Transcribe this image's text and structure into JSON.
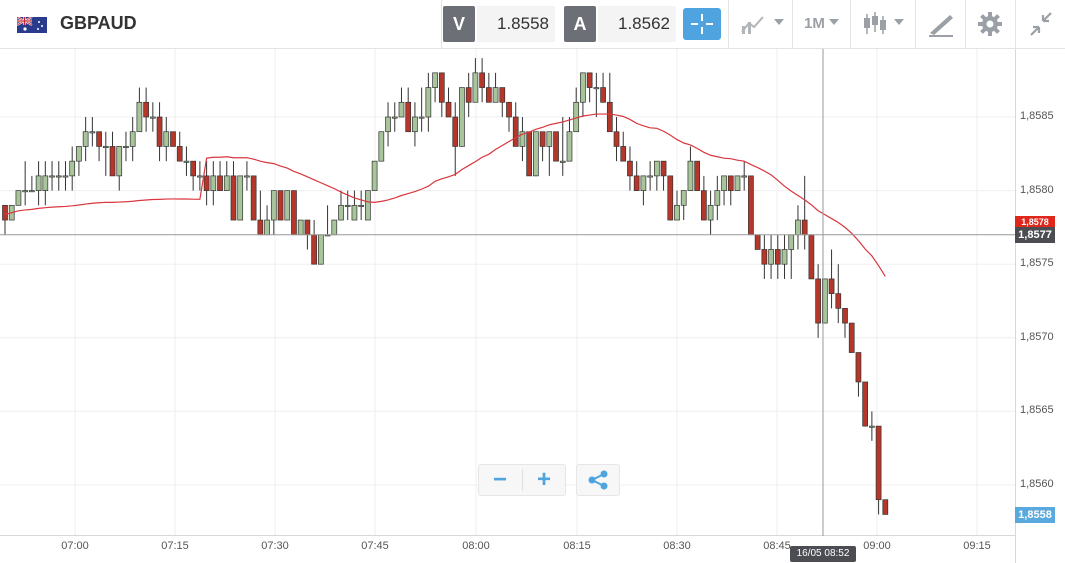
{
  "toolbar": {
    "symbol": "GBPAUD",
    "sell_tag": "V",
    "sell_price": "1.8558",
    "buy_tag": "A",
    "buy_price": "1.8562",
    "timeframe": "1M",
    "icons": [
      "flag-gb-au-icon",
      "crosshair-icon",
      "indicators-icon",
      "candlestick-type-icon",
      "draw-tool-icon",
      "gear-icon",
      "collapse-icon"
    ]
  },
  "chart": {
    "current_price_label": "1,8558",
    "crosshair_price_label": "1,8577",
    "prev_price_label": "1,8578",
    "crosshair_time_label": "16/05 08:52",
    "colors": {
      "up": "#a8c49a",
      "down": "#b5372a",
      "ma": "#d9363e",
      "badge_current": "#5aa9dc",
      "badge_cross": "#4b4d52",
      "badge_prev": "#e0271c"
    }
  },
  "chart_data": {
    "type": "candlestick",
    "y_ticks": [
      "1,8585",
      "1,8580",
      "1,8575",
      "1,8570",
      "1,8565",
      "1,8560"
    ],
    "x_ticks": [
      "07:00",
      "07:15",
      "07:30",
      "07:45",
      "08:00",
      "08:15",
      "08:30",
      "08:45",
      "09:00",
      "09:15"
    ],
    "ylim": [
      1.8555,
      1.859
    ],
    "candles": [
      [
        1.8579,
        1.8579,
        1.8577,
        1.8578
      ],
      [
        1.8578,
        1.8579,
        1.8578,
        1.8579
      ],
      [
        1.8579,
        1.858,
        1.8579,
        1.858
      ],
      [
        1.858,
        1.8582,
        1.8579,
        1.858
      ],
      [
        1.858,
        1.8581,
        1.858,
        1.858
      ],
      [
        1.858,
        1.8582,
        1.8579,
        1.8581
      ],
      [
        1.858,
        1.8582,
        1.8579,
        1.8581
      ],
      [
        1.8581,
        1.8582,
        1.858,
        1.8581
      ],
      [
        1.8581,
        1.8582,
        1.858,
        1.8581
      ],
      [
        1.8581,
        1.8582,
        1.858,
        1.8581
      ],
      [
        1.8581,
        1.8583,
        1.858,
        1.8582
      ],
      [
        1.8582,
        1.8583,
        1.8581,
        1.8583
      ],
      [
        1.8583,
        1.8585,
        1.8582,
        1.8584
      ],
      [
        1.8584,
        1.8585,
        1.8583,
        1.8584
      ],
      [
        1.8584,
        1.8584,
        1.8582,
        1.8583
      ],
      [
        1.8583,
        1.8584,
        1.8581,
        1.8583
      ],
      [
        1.8583,
        1.8584,
        1.8581,
        1.8581
      ],
      [
        1.8581,
        1.8583,
        1.858,
        1.8583
      ],
      [
        1.8583,
        1.8584,
        1.8582,
        1.8583
      ],
      [
        1.8583,
        1.8585,
        1.8582,
        1.8584
      ],
      [
        1.8584,
        1.8587,
        1.8584,
        1.8586
      ],
      [
        1.8586,
        1.8587,
        1.8584,
        1.8585
      ],
      [
        1.8585,
        1.8586,
        1.8584,
        1.8585
      ],
      [
        1.8585,
        1.8586,
        1.8582,
        1.8583
      ],
      [
        1.8583,
        1.8585,
        1.8582,
        1.8584
      ],
      [
        1.8584,
        1.8584,
        1.8583,
        1.8583
      ],
      [
        1.8583,
        1.8584,
        1.8582,
        1.8582
      ],
      [
        1.8582,
        1.8583,
        1.8581,
        1.8582
      ],
      [
        1.8582,
        1.8582,
        1.858,
        1.8581
      ],
      [
        1.8581,
        1.8582,
        1.858,
        1.8581
      ],
      [
        1.8581,
        1.8582,
        1.8579,
        1.858
      ],
      [
        1.858,
        1.8582,
        1.8579,
        1.8581
      ],
      [
        1.8581,
        1.8582,
        1.858,
        1.858
      ],
      [
        1.858,
        1.8582,
        1.858,
        1.8581
      ],
      [
        1.8581,
        1.8582,
        1.8578,
        1.8578
      ],
      [
        1.8578,
        1.8581,
        1.8578,
        1.8581
      ],
      [
        1.8581,
        1.8582,
        1.858,
        1.8581
      ],
      [
        1.8581,
        1.8581,
        1.8578,
        1.8578
      ],
      [
        1.8578,
        1.858,
        1.8577,
        1.8577
      ],
      [
        1.8577,
        1.8579,
        1.8577,
        1.8578
      ],
      [
        1.8578,
        1.858,
        1.8577,
        1.858
      ],
      [
        1.858,
        1.858,
        1.8578,
        1.8578
      ],
      [
        1.8578,
        1.858,
        1.8578,
        1.858
      ],
      [
        1.858,
        1.858,
        1.8577,
        1.8577
      ],
      [
        1.8577,
        1.8578,
        1.8577,
        1.8578
      ],
      [
        1.8578,
        1.8578,
        1.8576,
        1.8577
      ],
      [
        1.8577,
        1.8578,
        1.8575,
        1.8575
      ],
      [
        1.8575,
        1.8577,
        1.8575,
        1.8577
      ],
      [
        1.8577,
        1.8579,
        1.8577,
        1.8577
      ],
      [
        1.8577,
        1.8578,
        1.8577,
        1.8578
      ],
      [
        1.8578,
        1.858,
        1.8578,
        1.8579
      ],
      [
        1.8579,
        1.858,
        1.8578,
        1.8579
      ],
      [
        1.8578,
        1.858,
        1.8578,
        1.8579
      ],
      [
        1.8579,
        1.858,
        1.8578,
        1.8579
      ],
      [
        1.8578,
        1.858,
        1.8578,
        1.858
      ],
      [
        1.858,
        1.8582,
        1.858,
        1.8582
      ],
      [
        1.8582,
        1.8584,
        1.8582,
        1.8584
      ],
      [
        1.8584,
        1.8586,
        1.8583,
        1.8585
      ],
      [
        1.8585,
        1.8586,
        1.8584,
        1.8585
      ],
      [
        1.8585,
        1.8587,
        1.8585,
        1.8586
      ],
      [
        1.8586,
        1.8587,
        1.8584,
        1.8584
      ],
      [
        1.8584,
        1.8586,
        1.8583,
        1.8585
      ],
      [
        1.8585,
        1.8587,
        1.8584,
        1.8585
      ],
      [
        1.8585,
        1.8588,
        1.8584,
        1.8587
      ],
      [
        1.8587,
        1.8588,
        1.8586,
        1.8588
      ],
      [
        1.8588,
        1.8588,
        1.8585,
        1.8586
      ],
      [
        1.8586,
        1.8587,
        1.8585,
        1.8585
      ],
      [
        1.8585,
        1.8586,
        1.8581,
        1.8583
      ],
      [
        1.8583,
        1.8587,
        1.8583,
        1.8587
      ],
      [
        1.8587,
        1.8588,
        1.8585,
        1.8586
      ],
      [
        1.8586,
        1.8589,
        1.8586,
        1.8588
      ],
      [
        1.8588,
        1.8589,
        1.8586,
        1.8587
      ],
      [
        1.8587,
        1.8588,
        1.8586,
        1.8586
      ],
      [
        1.8586,
        1.8588,
        1.8586,
        1.8587
      ],
      [
        1.8587,
        1.8587,
        1.8585,
        1.8586
      ],
      [
        1.8586,
        1.8586,
        1.8584,
        1.8585
      ],
      [
        1.8585,
        1.8586,
        1.8583,
        1.8583
      ],
      [
        1.8583,
        1.8585,
        1.8582,
        1.8584
      ],
      [
        1.8584,
        1.8584,
        1.8581,
        1.8581
      ],
      [
        1.8581,
        1.8584,
        1.8581,
        1.8584
      ],
      [
        1.8584,
        1.8584,
        1.8582,
        1.8583
      ],
      [
        1.8583,
        1.8584,
        1.8581,
        1.8584
      ],
      [
        1.8584,
        1.8584,
        1.8582,
        1.8582
      ],
      [
        1.8582,
        1.8585,
        1.8581,
        1.8582
      ],
      [
        1.8582,
        1.8585,
        1.8582,
        1.8584
      ],
      [
        1.8584,
        1.8587,
        1.8584,
        1.8586
      ],
      [
        1.8586,
        1.8588,
        1.8585,
        1.8588
      ],
      [
        1.8588,
        1.8588,
        1.8586,
        1.8587
      ],
      [
        1.8587,
        1.8588,
        1.8585,
        1.8587
      ],
      [
        1.8587,
        1.8588,
        1.8586,
        1.8586
      ],
      [
        1.8586,
        1.8588,
        1.8584,
        1.8584
      ],
      [
        1.8584,
        1.8585,
        1.8582,
        1.8583
      ],
      [
        1.8583,
        1.8584,
        1.8582,
        1.8582
      ],
      [
        1.8582,
        1.8583,
        1.858,
        1.8581
      ],
      [
        1.8581,
        1.8582,
        1.858,
        1.858
      ],
      [
        1.858,
        1.8581,
        1.8579,
        1.8581
      ],
      [
        1.8581,
        1.8582,
        1.858,
        1.8581
      ],
      [
        1.8581,
        1.8582,
        1.858,
        1.8582
      ],
      [
        1.8582,
        1.8582,
        1.858,
        1.8581
      ],
      [
        1.8581,
        1.8581,
        1.8578,
        1.8578
      ],
      [
        1.8578,
        1.858,
        1.8578,
        1.8579
      ],
      [
        1.8579,
        1.858,
        1.8578,
        1.858
      ],
      [
        1.858,
        1.8583,
        1.858,
        1.8582
      ],
      [
        1.8582,
        1.8582,
        1.858,
        1.858
      ],
      [
        1.858,
        1.8581,
        1.8578,
        1.8578
      ],
      [
        1.8578,
        1.858,
        1.8577,
        1.8579
      ],
      [
        1.8579,
        1.8581,
        1.8578,
        1.858
      ],
      [
        1.858,
        1.8581,
        1.8579,
        1.8581
      ],
      [
        1.8581,
        1.8581,
        1.8579,
        1.858
      ],
      [
        1.858,
        1.8581,
        1.858,
        1.8581
      ],
      [
        1.8581,
        1.8582,
        1.858,
        1.8581
      ],
      [
        1.8581,
        1.8581,
        1.8577,
        1.8577
      ],
      [
        1.8577,
        1.8577,
        1.8576,
        1.8576
      ],
      [
        1.8576,
        1.8577,
        1.8574,
        1.8575
      ],
      [
        1.8575,
        1.8577,
        1.8574,
        1.8576
      ],
      [
        1.8576,
        1.8577,
        1.8574,
        1.8575
      ],
      [
        1.8575,
        1.8577,
        1.8574,
        1.8576
      ],
      [
        1.8576,
        1.8577,
        1.8574,
        1.8577
      ],
      [
        1.8577,
        1.8579,
        1.8576,
        1.8578
      ],
      [
        1.8578,
        1.8581,
        1.8576,
        1.8577
      ],
      [
        1.8577,
        1.8577,
        1.8574,
        1.8574
      ],
      [
        1.8574,
        1.8575,
        1.857,
        1.8571
      ],
      [
        1.8571,
        1.8574,
        1.8571,
        1.8574
      ],
      [
        1.8574,
        1.8576,
        1.8572,
        1.8573
      ],
      [
        1.8573,
        1.8575,
        1.8571,
        1.8572
      ],
      [
        1.8572,
        1.8572,
        1.857,
        1.8571
      ],
      [
        1.8571,
        1.8571,
        1.8569,
        1.8569
      ],
      [
        1.8569,
        1.8569,
        1.8566,
        1.8567
      ],
      [
        1.8567,
        1.8567,
        1.8564,
        1.8564
      ],
      [
        1.8564,
        1.8565,
        1.8563,
        1.8564
      ],
      [
        1.8564,
        1.8564,
        1.8558,
        1.8559
      ],
      [
        1.8559,
        1.8559,
        1.8558,
        1.8558
      ]
    ],
    "ma": [
      [
        1.8578
      ],
      [
        1.8578
      ],
      [
        1.8578
      ],
      [
        1.8578
      ]
    ]
  }
}
